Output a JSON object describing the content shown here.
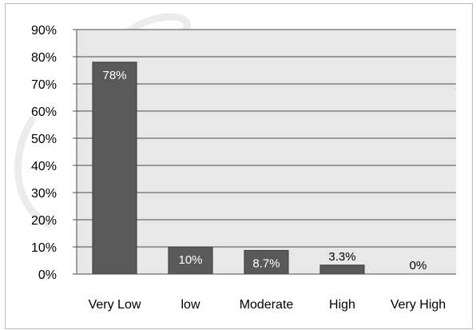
{
  "chart_data": {
    "type": "bar",
    "categories": [
      "Very Low",
      "low",
      "Moderate",
      "High",
      "Very High"
    ],
    "values": [
      78,
      10,
      8.7,
      3.3,
      0
    ],
    "data_labels": [
      "78%",
      "10%",
      "8.7%",
      "3.3%",
      "0%"
    ],
    "yticks": [
      "0%",
      "10%",
      "20%",
      "30%",
      "40%",
      "50%",
      "60%",
      "70%",
      "80%",
      "90%"
    ],
    "ylim": [
      0,
      90
    ],
    "title": "",
    "xlabel": "",
    "ylabel": "",
    "grid": true,
    "legend": "none",
    "colors": {
      "bar": "#595959",
      "bar_edge": "#3a3a3a",
      "plot_background": "#e8e8e8",
      "gridline": "#4d4d4d",
      "inner_label": "#ffffff",
      "outer_label": "#000000"
    }
  }
}
